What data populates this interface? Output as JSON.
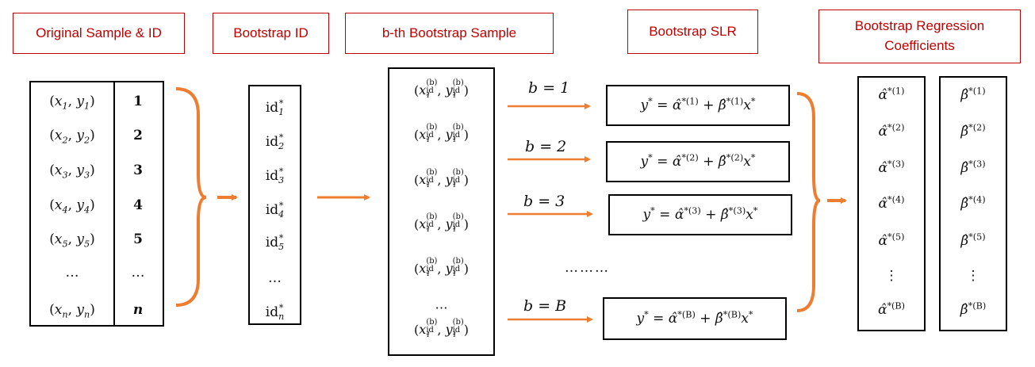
{
  "headers": {
    "original": "Original Sample & ID",
    "bootstrap_id": "Bootstrap ID",
    "bth_sample": "b-th Bootstrap Sample",
    "bootstrap_slr": "Bootstrap SLR",
    "coefficients_line1": "Bootstrap Regression",
    "coefficients_line2": "Coefficients"
  },
  "original_sample": {
    "pair_subscripts": [
      "1",
      "2",
      "3",
      "4",
      "5"
    ],
    "last_subscript": "n",
    "ellipsis": "…",
    "ids": [
      "1",
      "2",
      "3",
      "4",
      "5"
    ],
    "last_id": "n"
  },
  "bootstrap_ids": {
    "prefix": "id",
    "star": "*",
    "subscripts": [
      "1",
      "2",
      "3",
      "4",
      "5"
    ],
    "last_subscript": "n",
    "ellipsis": "…"
  },
  "bth_sample": {
    "superscript": "(b)",
    "subscript_top": "id",
    "subscript_bottom": "1",
    "star": "*",
    "row_count": 6,
    "ellipsis": "…"
  },
  "regressions": [
    {
      "b_label": "b = 1",
      "index": "(1)"
    },
    {
      "b_label": "b = 2",
      "index": "(2)"
    },
    {
      "b_label": "b = 3",
      "index": "(3)"
    },
    {
      "b_label": "b = B",
      "index": "(B)"
    }
  ],
  "between_dots": "………",
  "coefficients": {
    "alpha_symbol": "α̂",
    "beta_symbol": "β̂",
    "star": "*",
    "indices": [
      "(1)",
      "(2)",
      "(3)",
      "(4)",
      "(5)"
    ],
    "last_index": "(B)",
    "vdots": "⋮"
  },
  "colors": {
    "header_red": "#c00000",
    "arrow_orange": "#ed7d31",
    "border_black": "#000000"
  }
}
